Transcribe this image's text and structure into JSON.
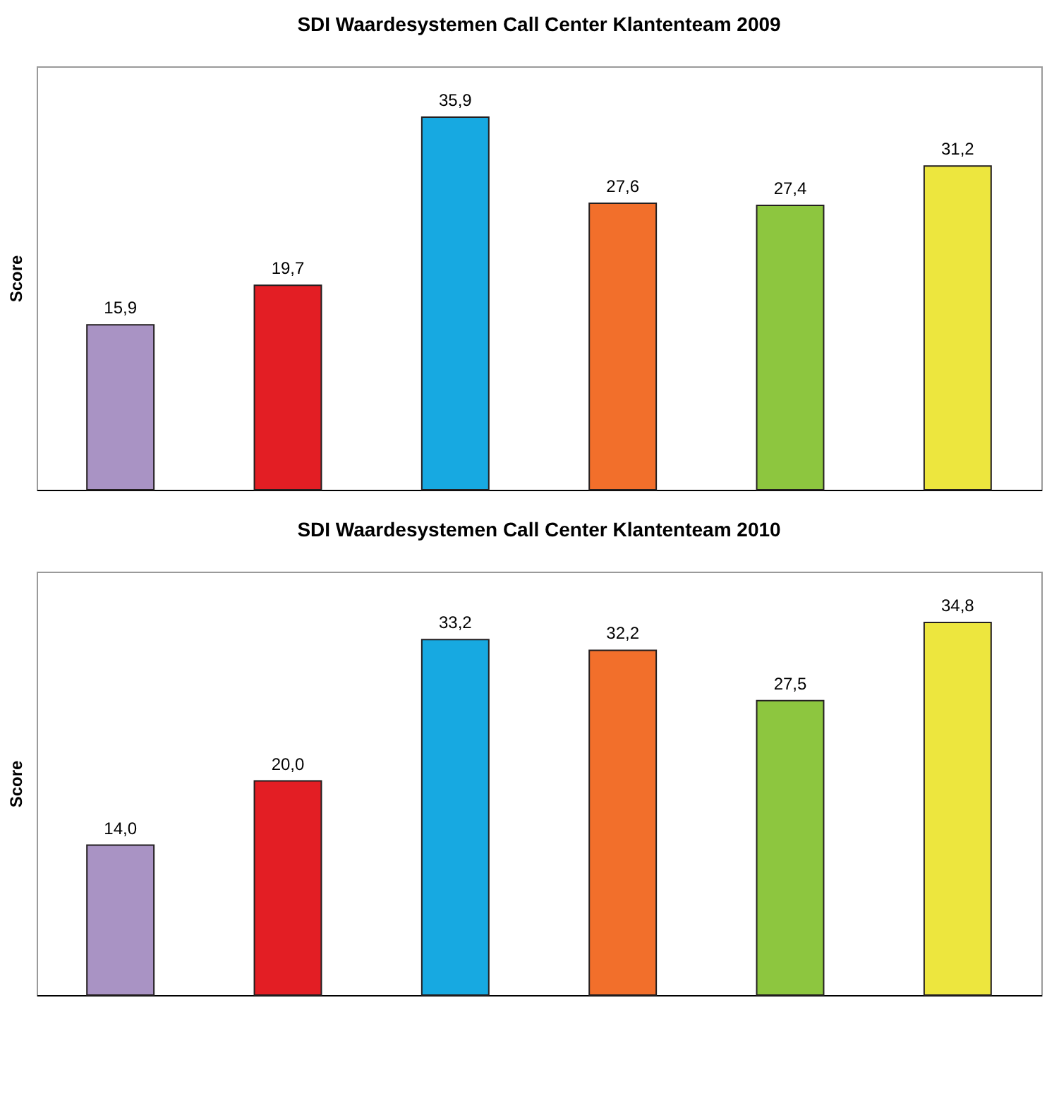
{
  "chart_data": [
    {
      "type": "bar",
      "title": "SDI Waardesystemen Call Center Klantenteam 2009",
      "ylabel": "Score",
      "categories": [
        null,
        null,
        null,
        null,
        null,
        null
      ],
      "values": [
        15.9,
        19.7,
        35.9,
        27.6,
        27.4,
        31.2
      ],
      "value_labels": [
        "15,9",
        "19,7",
        "35,9",
        "27,6",
        "27,4",
        "31,2"
      ],
      "colors": [
        "#a993c4",
        "#e31e24",
        "#17a9e1",
        "#f26f2b",
        "#8dc63f",
        "#ede63e"
      ],
      "tick_labels": false
    },
    {
      "type": "bar",
      "title": "SDI Waardesystemen Call Center Klantenteam 2010",
      "ylabel": "Score",
      "categories": [
        null,
        null,
        null,
        null,
        null,
        null
      ],
      "values": [
        14.0,
        20.0,
        33.2,
        32.2,
        27.5,
        34.8
      ],
      "value_labels": [
        "14,0",
        "20,0",
        "33,2",
        "32,2",
        "27,5",
        "34,8"
      ],
      "colors": [
        "#a993c4",
        "#e31e24",
        "#17a9e1",
        "#f26f2b",
        "#8dc63f",
        "#ede63e"
      ],
      "tick_labels": false
    }
  ]
}
